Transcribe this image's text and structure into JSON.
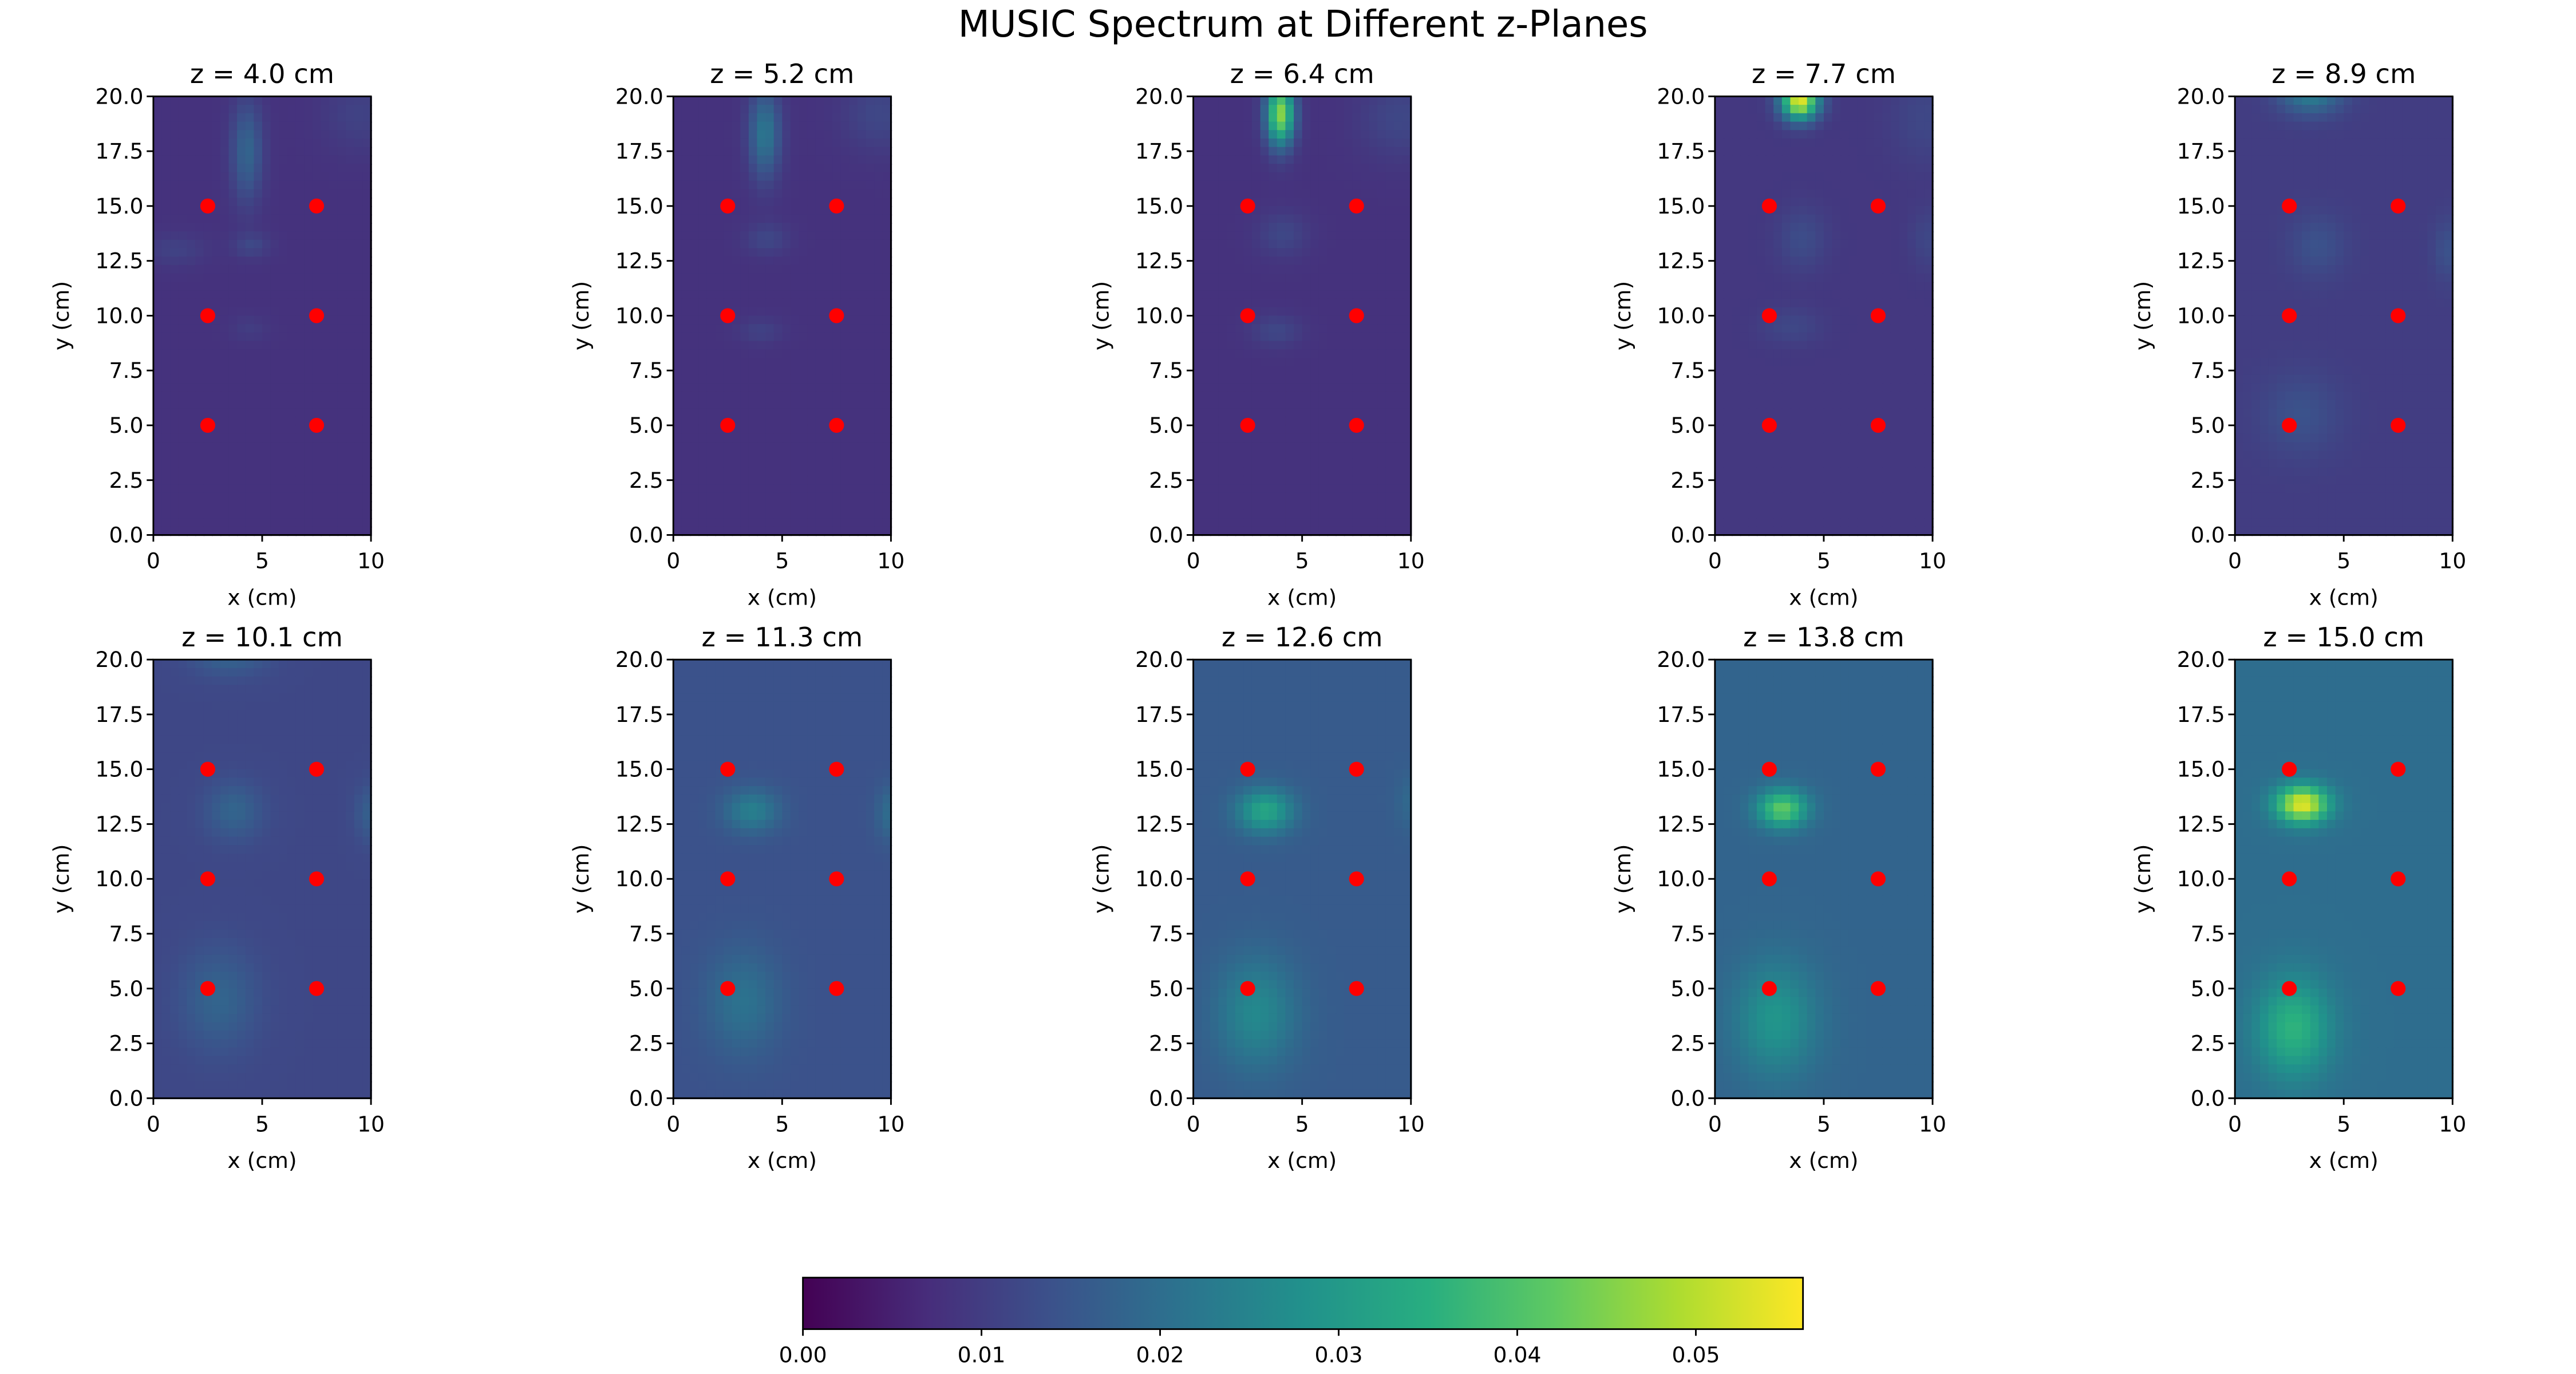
{
  "title": "MUSIC Spectrum at Different z-Planes",
  "colors": {
    "marker": "#ff0000",
    "axis": "#000000",
    "background": "#ffffff",
    "colormap": "viridis"
  },
  "chart_data": {
    "type": "heatmap",
    "title": "MUSIC Spectrum at Different z-Planes",
    "xlabel": "x (cm)",
    "ylabel": "y (cm)",
    "xlim": [
      0,
      10
    ],
    "ylim": [
      0,
      20
    ],
    "xticks": [
      "0",
      "5",
      "10"
    ],
    "yticks": [
      "0.0",
      "2.5",
      "5.0",
      "7.5",
      "10.0",
      "12.5",
      "15.0",
      "17.5",
      "20.0"
    ],
    "grid": false,
    "colorbar": {
      "orientation": "horizontal",
      "placement": "bottom",
      "range": [
        0,
        0.056
      ],
      "ticks": [
        "0.00",
        "0.01",
        "0.02",
        "0.03",
        "0.04",
        "0.05"
      ]
    },
    "sensor_points": [
      {
        "x": 2.5,
        "y": 15.0
      },
      {
        "x": 7.5,
        "y": 15.0
      },
      {
        "x": 2.5,
        "y": 10.0
      },
      {
        "x": 7.5,
        "y": 10.0
      },
      {
        "x": 2.5,
        "y": 5.0
      },
      {
        "x": 7.5,
        "y": 5.0
      }
    ],
    "panels": [
      {
        "title": "z = 4.0 cm",
        "z": 4.0,
        "base": 0.008,
        "blobs": [
          [
            4.3,
            17.5,
            0.5,
            1.6,
            0.01
          ],
          [
            4.5,
            13.2,
            0.6,
            0.4,
            0.004
          ],
          [
            1.0,
            13.0,
            1.0,
            0.5,
            0.003
          ],
          [
            4.4,
            9.4,
            0.6,
            0.4,
            0.002
          ],
          [
            9.5,
            19.2,
            1.2,
            1.2,
            0.003
          ]
        ]
      },
      {
        "title": "z = 5.2 cm",
        "z": 5.2,
        "base": 0.008,
        "blobs": [
          [
            4.2,
            18.3,
            0.5,
            1.4,
            0.014
          ],
          [
            4.3,
            13.5,
            0.7,
            0.5,
            0.004
          ],
          [
            4.0,
            9.3,
            0.7,
            0.4,
            0.003
          ],
          [
            9.5,
            19.2,
            1.2,
            1.2,
            0.004
          ]
        ]
      },
      {
        "title": "z = 6.4 cm",
        "z": 6.4,
        "base": 0.008,
        "blobs": [
          [
            4.0,
            19.2,
            0.45,
            1.0,
            0.038
          ],
          [
            4.1,
            13.7,
            0.8,
            0.7,
            0.004
          ],
          [
            3.8,
            9.3,
            0.8,
            0.5,
            0.004
          ],
          [
            9.5,
            19.0,
            1.3,
            1.3,
            0.004
          ]
        ]
      },
      {
        "title": "z = 7.7 cm",
        "z": 7.7,
        "base": 0.009,
        "blobs": [
          [
            3.9,
            19.8,
            0.6,
            0.6,
            0.045
          ],
          [
            4.0,
            13.5,
            0.8,
            1.0,
            0.004
          ],
          [
            3.5,
            9.5,
            1.0,
            0.6,
            0.003
          ],
          [
            9.7,
            19.0,
            1.2,
            1.5,
            0.003
          ],
          [
            9.8,
            13.5,
            0.6,
            1.0,
            0.003
          ]
        ]
      },
      {
        "title": "z = 8.9 cm",
        "z": 8.9,
        "base": 0.01,
        "blobs": [
          [
            3.5,
            20.2,
            1.0,
            0.7,
            0.014
          ],
          [
            3.8,
            13.2,
            0.9,
            1.0,
            0.004
          ],
          [
            3.0,
            5.5,
            1.3,
            1.3,
            0.004
          ],
          [
            9.8,
            13.0,
            0.5,
            1.0,
            0.004
          ]
        ]
      },
      {
        "title": "z = 10.1 cm",
        "z": 10.1,
        "base": 0.012,
        "blobs": [
          [
            3.5,
            20.3,
            1.2,
            0.7,
            0.006
          ],
          [
            3.7,
            13.1,
            0.9,
            0.9,
            0.006
          ],
          [
            3.0,
            4.5,
            1.2,
            1.6,
            0.006
          ],
          [
            10.0,
            13.0,
            0.5,
            0.9,
            0.005
          ]
        ]
      },
      {
        "title": "z = 11.3 cm",
        "z": 11.3,
        "base": 0.014,
        "blobs": [
          [
            3.6,
            13.1,
            0.9,
            0.7,
            0.01
          ],
          [
            3.2,
            4.4,
            1.2,
            1.7,
            0.007
          ],
          [
            10.0,
            13.0,
            0.5,
            0.9,
            0.006
          ]
        ]
      },
      {
        "title": "z = 12.6 cm",
        "z": 12.6,
        "base": 0.016,
        "blobs": [
          [
            3.3,
            13.1,
            0.9,
            0.7,
            0.017
          ],
          [
            2.9,
            3.9,
            1.3,
            1.8,
            0.01
          ],
          [
            10.0,
            13.5,
            0.5,
            0.9,
            0.003
          ]
        ]
      },
      {
        "title": "z = 13.8 cm",
        "z": 13.8,
        "base": 0.018,
        "blobs": [
          [
            3.1,
            13.2,
            0.8,
            0.6,
            0.024
          ],
          [
            2.8,
            3.6,
            1.3,
            1.8,
            0.011
          ]
        ]
      },
      {
        "title": "z = 15.0 cm",
        "z": 15.0,
        "base": 0.02,
        "blobs": [
          [
            3.1,
            13.4,
            0.85,
            0.6,
            0.034
          ],
          [
            2.7,
            3.2,
            1.2,
            1.6,
            0.016
          ]
        ]
      }
    ]
  }
}
